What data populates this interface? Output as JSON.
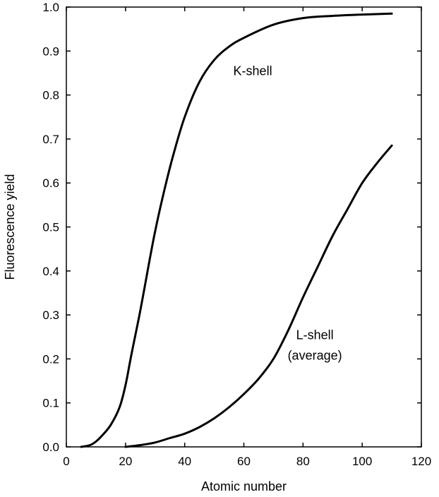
{
  "chart_data": {
    "type": "line",
    "title": "",
    "xlabel": "Atomic number",
    "ylabel": "Fluorescence yield",
    "xlim": [
      0,
      120
    ],
    "ylim": [
      0,
      1.0
    ],
    "xticks": [
      0,
      20,
      40,
      60,
      80,
      100,
      120
    ],
    "xtick_labels": [
      "0",
      "20",
      "40",
      "60",
      "80",
      "100",
      "120"
    ],
    "yticks": [
      0,
      0.1,
      0.2,
      0.3,
      0.4,
      0.5,
      0.6,
      0.7,
      0.8,
      0.9,
      1.0
    ],
    "ytick_labels": [
      "0.0",
      "0.1",
      "0.2",
      "0.3",
      "0.4",
      "0.5",
      "0.6",
      "0.7",
      "0.8",
      "0.9",
      "1.0"
    ],
    "grid": false,
    "legend": "none",
    "line_color": "#000000",
    "series": [
      {
        "name": "K-shell",
        "x": [
          5,
          8,
          10,
          12,
          15,
          18,
          20,
          22,
          25,
          28,
          30,
          33,
          36,
          40,
          45,
          50,
          55,
          60,
          70,
          80,
          90,
          100,
          110
        ],
        "y": [
          0,
          0.004,
          0.012,
          0.025,
          0.05,
          0.09,
          0.14,
          0.21,
          0.31,
          0.42,
          0.49,
          0.58,
          0.66,
          0.75,
          0.83,
          0.88,
          0.91,
          0.93,
          0.96,
          0.975,
          0.98,
          0.983,
          0.985
        ]
      },
      {
        "name": "L-shell (average)",
        "x": [
          20,
          25,
          30,
          35,
          40,
          45,
          50,
          55,
          60,
          65,
          70,
          75,
          80,
          85,
          90,
          95,
          100,
          105,
          110
        ],
        "y": [
          0,
          0.004,
          0.01,
          0.02,
          0.03,
          0.045,
          0.065,
          0.09,
          0.12,
          0.155,
          0.2,
          0.265,
          0.34,
          0.41,
          0.48,
          0.54,
          0.6,
          0.645,
          0.685
        ]
      }
    ],
    "annotations": [
      {
        "lines": [
          "K-shell"
        ],
        "x": 63,
        "y": 0.845
      },
      {
        "lines": [
          "L-shell",
          "(average)"
        ],
        "x": 84,
        "y": 0.245
      }
    ]
  }
}
